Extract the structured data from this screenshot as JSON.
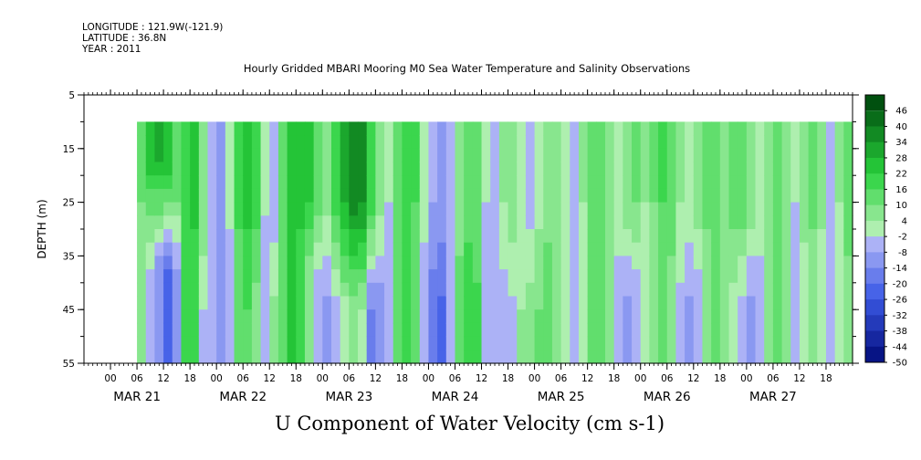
{
  "header": {
    "longitude": "LONGITUDE : 121.9W(-121.9)",
    "latitude": "LATITUDE : 36.8N",
    "year": "YEAR : 2011"
  },
  "title": "Hourly Gridded MBARI Mooring M0 Sea Water Temperature and Salinity Observations",
  "bottom_title": "U Component of Water Velocity (cm s-1)",
  "chart_data": {
    "type": "heatmap",
    "title": "Hourly Gridded MBARI Mooring M0 Sea Water Temperature and Salinity Observations",
    "xlabel": "",
    "ylabel": "DEPTH (m)",
    "variable": "U Component of Water Velocity (cm s-1)",
    "y_axis": {
      "range": [
        5,
        55
      ],
      "inverted": true,
      "ticks": [
        5,
        15,
        25,
        35,
        45,
        55
      ]
    },
    "x_axis": {
      "hour_ticks": [
        "00",
        "06",
        "12",
        "18",
        "00",
        "06",
        "12",
        "18",
        "00",
        "06",
        "12",
        "18",
        "00",
        "06",
        "12",
        "18",
        "00",
        "06",
        "12",
        "18",
        "00",
        "06",
        "12",
        "18",
        "00",
        "06",
        "12",
        "18"
      ],
      "day_labels": [
        "MAR 21",
        "MAR 22",
        "MAR 23",
        "MAR 24",
        "MAR 25",
        "MAR 26",
        "MAR 27"
      ],
      "range_hours": [
        -6,
        168
      ],
      "data_start_hours": 6,
      "data_end_hours": 168
    },
    "data_depth_range": [
      10,
      55
    ],
    "colorbar": {
      "levels": [
        -50,
        -44,
        -38,
        -32,
        -26,
        -20,
        -14,
        -8,
        -2,
        4,
        10,
        16,
        22,
        28,
        34,
        40,
        46
      ],
      "labels": [
        "46",
        "40",
        "34",
        "28",
        "22",
        "16",
        "10",
        "4",
        "-2",
        "-8",
        "-14",
        "-20",
        "-26",
        "-32",
        "-38",
        "-44",
        "-50"
      ]
    },
    "colors": {
      "neg_extreme": "#000a78",
      "neg_mid": "#3c5ae6",
      "neg_light": "#c8c8fa",
      "pos_light": "#b4f0b4",
      "pos_mid": "#28d23c",
      "pos_extreme": "#00500f"
    },
    "column_profiles": [
      {
        "h": 6,
        "top": 12,
        "bot": 4,
        "shift": 30
      },
      {
        "h": 8,
        "top": 24,
        "bot": -4,
        "shift": 28
      },
      {
        "h": 10,
        "top": 28,
        "bot": -10,
        "shift": 27
      },
      {
        "h": 12,
        "top": 26,
        "bot": -22,
        "shift": 29
      },
      {
        "h": 14,
        "top": 14,
        "bot": -12,
        "shift": 31
      },
      {
        "h": 16,
        "top": 20,
        "bot": 16,
        "shift": 40
      },
      {
        "h": 18,
        "top": 22,
        "bot": 20,
        "shift": 40
      },
      {
        "h": 20,
        "top": 6,
        "bot": -4,
        "shift": 40
      },
      {
        "h": 22,
        "top": -4,
        "bot": -8,
        "shift": 40
      },
      {
        "h": 24,
        "top": -14,
        "bot": -10,
        "shift": 40
      },
      {
        "h": 26,
        "top": -2,
        "bot": -6,
        "shift": 40
      },
      {
        "h": 28,
        "top": 16,
        "bot": 10,
        "shift": 40
      },
      {
        "h": 30,
        "top": 22,
        "bot": 14,
        "shift": 40
      },
      {
        "h": 32,
        "top": 18,
        "bot": 4,
        "shift": 38
      },
      {
        "h": 34,
        "top": -2,
        "bot": -6,
        "shift": 38
      },
      {
        "h": 36,
        "top": -6,
        "bot": 6,
        "shift": 36
      },
      {
        "h": 38,
        "top": 14,
        "bot": 14,
        "shift": 34
      },
      {
        "h": 40,
        "top": 22,
        "bot": 22,
        "shift": 30
      },
      {
        "h": 42,
        "top": 26,
        "bot": 18,
        "shift": 30
      },
      {
        "h": 44,
        "top": 24,
        "bot": 4,
        "shift": 32
      },
      {
        "h": 46,
        "top": 14,
        "bot": -8,
        "shift": 34
      },
      {
        "h": 48,
        "top": 6,
        "bot": -10,
        "shift": 35
      },
      {
        "h": 50,
        "top": 18,
        "bot": -4,
        "shift": 35
      },
      {
        "h": 52,
        "top": 28,
        "bot": 2,
        "shift": 35
      },
      {
        "h": 54,
        "top": 38,
        "bot": 4,
        "shift": 35
      },
      {
        "h": 56,
        "top": 34,
        "bot": 2,
        "shift": 35
      },
      {
        "h": 58,
        "top": 20,
        "bot": -16,
        "shift": 35
      },
      {
        "h": 60,
        "top": 8,
        "bot": -14,
        "shift": 35
      },
      {
        "h": 62,
        "top": -2,
        "bot": -6,
        "shift": 35
      },
      {
        "h": 64,
        "top": 10,
        "bot": 14,
        "shift": 35
      },
      {
        "h": 66,
        "top": 18,
        "bot": 20,
        "shift": 35
      },
      {
        "h": 68,
        "top": 16,
        "bot": 14,
        "shift": 35
      },
      {
        "h": 70,
        "top": 2,
        "bot": -8,
        "shift": 35
      },
      {
        "h": 72,
        "top": -8,
        "bot": -18,
        "shift": 35
      },
      {
        "h": 74,
        "top": -10,
        "bot": -22,
        "shift": 35
      },
      {
        "h": 76,
        "top": -4,
        "bot": -6,
        "shift": 35
      },
      {
        "h": 78,
        "top": 8,
        "bot": 12,
        "shift": 35
      },
      {
        "h": 80,
        "top": 14,
        "bot": 20,
        "shift": 35
      },
      {
        "h": 82,
        "top": 10,
        "bot": 18,
        "shift": 35
      },
      {
        "h": 84,
        "top": -2,
        "bot": -4,
        "shift": 35
      },
      {
        "h": 86,
        "top": -4,
        "bot": -8,
        "shift": 35
      },
      {
        "h": 88,
        "top": 4,
        "bot": -6,
        "shift": 35
      },
      {
        "h": 90,
        "top": 8,
        "bot": -4,
        "shift": 35
      },
      {
        "h": 92,
        "top": 2,
        "bot": 4,
        "shift": 35
      },
      {
        "h": 94,
        "top": -4,
        "bot": 6,
        "shift": 35
      },
      {
        "h": 96,
        "top": 2,
        "bot": 10,
        "shift": 35
      },
      {
        "h": 98,
        "top": 8,
        "bot": 14,
        "shift": 35
      },
      {
        "h": 100,
        "top": 6,
        "bot": 8,
        "shift": 35
      },
      {
        "h": 102,
        "top": -2,
        "bot": -2,
        "shift": 35
      },
      {
        "h": 104,
        "top": -6,
        "bot": -8,
        "shift": 35
      },
      {
        "h": 106,
        "top": 4,
        "bot": 2,
        "shift": 35
      },
      {
        "h": 108,
        "top": 12,
        "bot": 10,
        "shift": 35
      },
      {
        "h": 110,
        "top": 14,
        "bot": 12,
        "shift": 35
      },
      {
        "h": 112,
        "top": 6,
        "bot": 6,
        "shift": 35
      },
      {
        "h": 114,
        "top": 2,
        "bot": -6,
        "shift": 35
      },
      {
        "h": 116,
        "top": 8,
        "bot": -10,
        "shift": 35
      },
      {
        "h": 118,
        "top": 10,
        "bot": -8,
        "shift": 35
      },
      {
        "h": 120,
        "top": 4,
        "bot": -2,
        "shift": 35
      },
      {
        "h": 122,
        "top": 10,
        "bot": 6,
        "shift": 35
      },
      {
        "h": 124,
        "top": 16,
        "bot": 12,
        "shift": 35
      },
      {
        "h": 126,
        "top": 12,
        "bot": 8,
        "shift": 35
      },
      {
        "h": 128,
        "top": 4,
        "bot": -4,
        "shift": 35
      },
      {
        "h": 130,
        "top": 2,
        "bot": -10,
        "shift": 35
      },
      {
        "h": 132,
        "top": 8,
        "bot": -8,
        "shift": 35
      },
      {
        "h": 134,
        "top": 12,
        "bot": 4,
        "shift": 35
      },
      {
        "h": 136,
        "top": 10,
        "bot": 10,
        "shift": 35
      },
      {
        "h": 138,
        "top": 6,
        "bot": 8,
        "shift": 35
      },
      {
        "h": 140,
        "top": 12,
        "bot": 2,
        "shift": 35
      },
      {
        "h": 142,
        "top": 14,
        "bot": -4,
        "shift": 35
      },
      {
        "h": 144,
        "top": 8,
        "bot": -10,
        "shift": 35
      },
      {
        "h": 146,
        "top": 2,
        "bot": -6,
        "shift": 35
      },
      {
        "h": 148,
        "top": 6,
        "bot": 8,
        "shift": 35
      },
      {
        "h": 150,
        "top": 10,
        "bot": 14,
        "shift": 35
      },
      {
        "h": 152,
        "top": 4,
        "bot": 8,
        "shift": 35
      },
      {
        "h": 154,
        "top": -2,
        "bot": -4,
        "shift": 35
      },
      {
        "h": 156,
        "top": 8,
        "bot": -2,
        "shift": 35
      },
      {
        "h": 158,
        "top": 12,
        "bot": 4,
        "shift": 35
      },
      {
        "h": 160,
        "top": 6,
        "bot": -2,
        "shift": 35
      },
      {
        "h": 162,
        "top": -4,
        "bot": -6,
        "shift": 35
      },
      {
        "h": 164,
        "top": 4,
        "bot": 2,
        "shift": 35
      },
      {
        "h": 166,
        "top": 12,
        "bot": 8,
        "shift": 35
      },
      {
        "h": 168,
        "top": 12,
        "bot": 8,
        "shift": 35
      }
    ]
  }
}
